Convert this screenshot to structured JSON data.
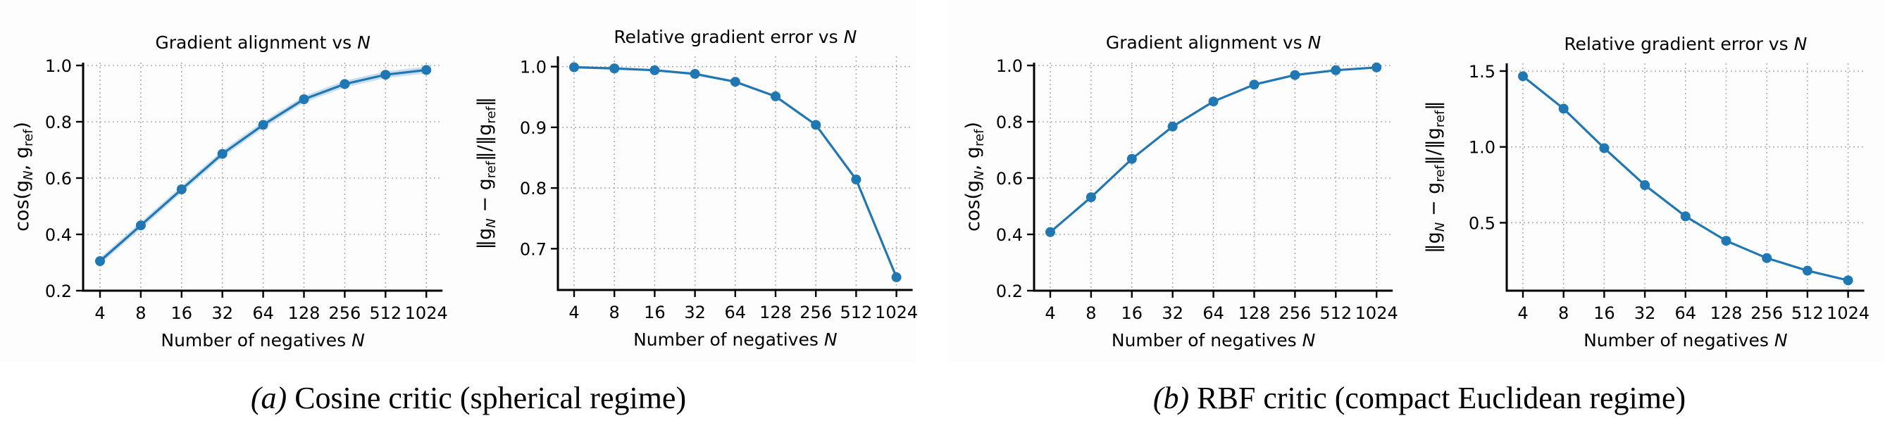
{
  "figure": {
    "captions": [
      {
        "tag": "(a)",
        "text": "Cosine critic (spherical regime)"
      },
      {
        "tag": "(b)",
        "text": "RBF critic (compact Euclidean regime)"
      }
    ],
    "colors": {
      "line": "#1f77b4",
      "band": "#a9c9e6",
      "grid": "#b0b0b0",
      "axis": "#000000"
    }
  },
  "chart_data": [
    {
      "type": "line",
      "group": "(a) Cosine critic (spherical regime)",
      "title": "Gradient alignment vs",
      "title_italic": "N",
      "xlabel": "Number of negatives",
      "xlabel_italic": "N",
      "ylabel": "cos(g_N, g_ref)",
      "categories": [
        "4",
        "8",
        "16",
        "32",
        "64",
        "128",
        "256",
        "512",
        "1024"
      ],
      "values": [
        0.305,
        0.432,
        0.56,
        0.686,
        0.789,
        0.88,
        0.934,
        0.967,
        0.984
      ],
      "band": 0.012,
      "yticks": [
        0.2,
        0.4,
        0.6,
        0.8,
        1.0
      ],
      "ytick_labels": [
        "0.2",
        "0.4",
        "0.6",
        "0.8",
        "1.0"
      ],
      "ylim": [
        0.2,
        1.01
      ],
      "grid": true
    },
    {
      "type": "line",
      "group": "(a) Cosine critic (spherical regime)",
      "title": "Relative gradient error vs",
      "title_italic": "N",
      "xlabel": "Number of negatives",
      "xlabel_italic": "N",
      "ylabel": "||g_N − g_ref|| / ||g_ref||",
      "categories": [
        "4",
        "8",
        "16",
        "32",
        "64",
        "128",
        "256",
        "512",
        "1024"
      ],
      "values": [
        0.999,
        0.997,
        0.994,
        0.988,
        0.975,
        0.951,
        0.904,
        0.814,
        0.653
      ],
      "band": 0.002,
      "yticks": [
        0.7,
        0.8,
        0.9,
        1.0
      ],
      "ytick_labels": [
        "0.7",
        "0.8",
        "0.9",
        "1.0"
      ],
      "ylim": [
        0.632,
        1.017
      ],
      "grid": true
    },
    {
      "type": "line",
      "group": "(b) RBF critic (compact Euclidean regime)",
      "title": "Gradient alignment vs",
      "title_italic": "N",
      "xlabel": "Number of negatives",
      "xlabel_italic": "N",
      "ylabel": "cos(g_N, g_ref)",
      "categories": [
        "4",
        "8",
        "16",
        "32",
        "64",
        "128",
        "256",
        "512",
        "1024"
      ],
      "values": [
        0.408,
        0.532,
        0.668,
        0.783,
        0.872,
        0.932,
        0.966,
        0.983,
        0.993
      ],
      "band": 0.004,
      "yticks": [
        0.2,
        0.4,
        0.6,
        0.8,
        1.0
      ],
      "ytick_labels": [
        "0.2",
        "0.4",
        "0.6",
        "0.8",
        "1.0"
      ],
      "ylim": [
        0.2,
        1.01
      ],
      "grid": true
    },
    {
      "type": "line",
      "group": "(b) RBF critic (compact Euclidean regime)",
      "title": "Relative gradient error vs",
      "title_italic": "N",
      "xlabel": "Number of negatives",
      "xlabel_italic": "N",
      "ylabel": "||g_N − g_ref|| / ||g_ref||",
      "categories": [
        "4",
        "8",
        "16",
        "32",
        "64",
        "128",
        "256",
        "512",
        "1024"
      ],
      "values": [
        1.466,
        1.252,
        0.992,
        0.748,
        0.542,
        0.381,
        0.267,
        0.184,
        0.12
      ],
      "band": 0.006,
      "yticks": [
        0.5,
        1.0,
        1.5
      ],
      "ytick_labels": [
        "0.5",
        "1.0",
        "1.5"
      ],
      "ylim": [
        0.052,
        1.551
      ],
      "grid": true
    }
  ]
}
